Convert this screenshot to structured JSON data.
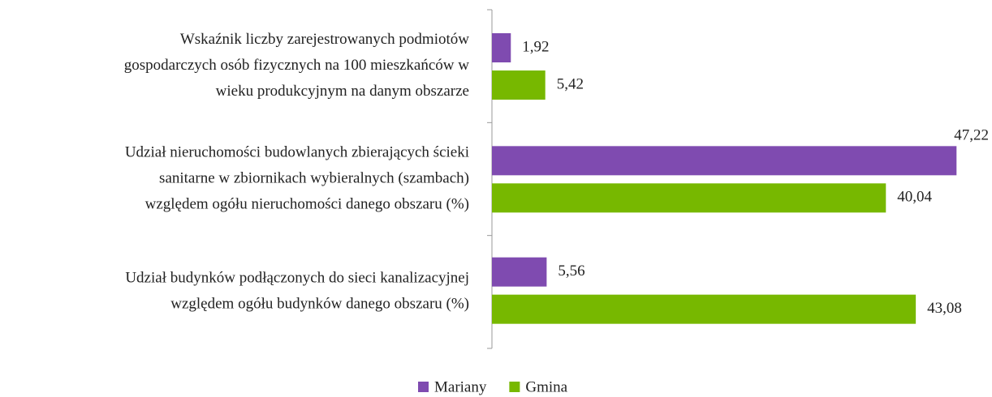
{
  "chart_data": {
    "type": "hbar",
    "categories": [
      [
        "Wskaźnik liczby zarejestrowanych podmiotów",
        "gospodarczych osób fizycznych na 100 mieszkańców w",
        "wieku produkcyjnym na danym obszarze"
      ],
      [
        "Udział nieruchomości budowlanych zbierających ścieki",
        "sanitarne w zbiornikach wybieralnych (szambach)",
        "względem ogółu nieruchomości danego obszaru (%)"
      ],
      [
        "Udział budynków podłączonych do sieci kanalizacyjnej",
        "względem ogółu budynków danego obszaru (%)"
      ]
    ],
    "series": [
      {
        "name": "Mariany",
        "color": "#7f4bb0",
        "values": [
          1.92,
          47.22,
          5.56
        ],
        "value_labels": [
          "1,92",
          "47,22",
          "5,56"
        ]
      },
      {
        "name": "Gmina",
        "color": "#77b800",
        "values": [
          5.42,
          40.04,
          43.08
        ],
        "value_labels": [
          "5,42",
          "40,04",
          "43,08"
        ]
      }
    ],
    "xlim": [
      0,
      50
    ],
    "legend": "bottom"
  }
}
